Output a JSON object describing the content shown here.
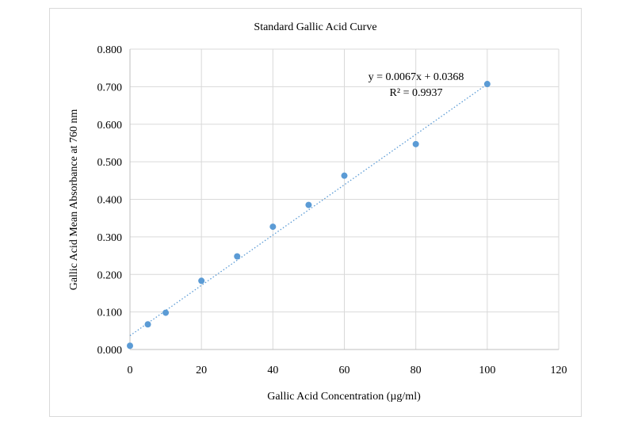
{
  "chart_data": {
    "type": "scatter",
    "title": "Standard Gallic Acid Curve",
    "xlabel": "Gallic Acid Concentration (µg/ml)",
    "ylabel": "Gallic Acid Mean Absorbance at 760 nm",
    "xlim": [
      0,
      120
    ],
    "ylim": [
      0,
      0.8
    ],
    "x_ticks": [
      "0",
      "20",
      "40",
      "60",
      "80",
      "100",
      "120"
    ],
    "y_ticks": [
      "0.000",
      "0.100",
      "0.200",
      "0.300",
      "0.400",
      "0.500",
      "0.600",
      "0.700",
      "0.800"
    ],
    "grid": true,
    "series": [
      {
        "x": [
          0,
          5,
          10,
          20,
          30,
          40,
          50,
          60,
          80,
          100
        ],
        "y": [
          0.01,
          0.067,
          0.098,
          0.183,
          0.248,
          0.327,
          0.385,
          0.463,
          0.547,
          0.707
        ],
        "color": "#5b9bd5"
      }
    ],
    "trendline": {
      "slope": 0.0067,
      "intercept": 0.0368,
      "x_range": [
        0,
        100
      ],
      "style": "dotted",
      "color": "#5b9bd5"
    },
    "annotations": {
      "equation": "y = 0.0067x + 0.0368",
      "r2": "R² = 0.9937"
    }
  }
}
